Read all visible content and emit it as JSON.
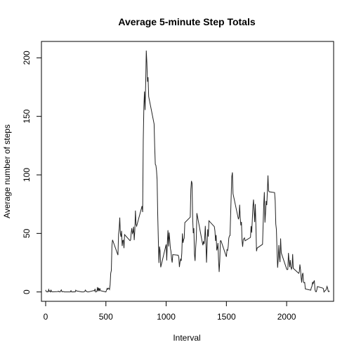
{
  "chart_data": {
    "type": "line",
    "title": "Average 5-minute Step Totals",
    "xlabel": "Interval",
    "ylabel": "Average number of steps",
    "xlim": [
      -35,
      2390
    ],
    "ylim": [
      -8,
      214
    ],
    "xticks": [
      0,
      500,
      1000,
      1500,
      2000
    ],
    "yticks": [
      0,
      50,
      100,
      150,
      200
    ],
    "grid": false,
    "series": [
      {
        "color": "#222222",
        "points": [
          [
            0,
            1.7
          ],
          [
            5,
            0.3
          ],
          [
            10,
            0.1
          ],
          [
            15,
            0.2
          ],
          [
            20,
            0.1
          ],
          [
            25,
            2.1
          ],
          [
            30,
            0.5
          ],
          [
            35,
            0.9
          ],
          [
            40,
            0
          ],
          [
            45,
            1.5
          ],
          [
            50,
            0.3
          ],
          [
            55,
            0.1
          ],
          [
            100,
            0.3
          ],
          [
            105,
            0.7
          ],
          [
            110,
            0.2
          ],
          [
            115,
            0.3
          ],
          [
            120,
            0
          ],
          [
            125,
            1.1
          ],
          [
            130,
            1.8
          ],
          [
            135,
            0.2
          ],
          [
            140,
            0.2
          ],
          [
            145,
            0.4
          ],
          [
            150,
            0.3
          ],
          [
            155,
            0
          ],
          [
            200,
            0
          ],
          [
            205,
            0
          ],
          [
            210,
            1.1
          ],
          [
            215,
            0
          ],
          [
            220,
            0
          ],
          [
            225,
            0.1
          ],
          [
            230,
            0
          ],
          [
            235,
            0.2
          ],
          [
            240,
            0
          ],
          [
            245,
            0
          ],
          [
            250,
            1.5
          ],
          [
            255,
            0.9
          ],
          [
            300,
            0
          ],
          [
            305,
            0
          ],
          [
            310,
            0
          ],
          [
            315,
            0
          ],
          [
            320,
            0.2
          ],
          [
            325,
            0.6
          ],
          [
            330,
            1.6
          ],
          [
            335,
            0.6
          ],
          [
            340,
            0.5
          ],
          [
            345,
            0.1
          ],
          [
            350,
            0
          ],
          [
            355,
            0
          ],
          [
            400,
            1.2
          ],
          [
            405,
            0.9
          ],
          [
            410,
            2.6
          ],
          [
            415,
            0
          ],
          [
            420,
            0.3
          ],
          [
            425,
            0.4
          ],
          [
            430,
            4.1
          ],
          [
            435,
            0.7
          ],
          [
            440,
            3.5
          ],
          [
            445,
            0.8
          ],
          [
            450,
            3.1
          ],
          [
            455,
            1.1
          ],
          [
            500,
            0
          ],
          [
            505,
            1.6
          ],
          [
            510,
            3
          ],
          [
            515,
            2.2
          ],
          [
            520,
            3.3
          ],
          [
            525,
            3
          ],
          [
            530,
            2.1
          ],
          [
            535,
            6.1
          ],
          [
            540,
            16
          ],
          [
            545,
            18.3
          ],
          [
            550,
            39.4
          ],
          [
            555,
            44.5
          ],
          [
            600,
            31.5
          ],
          [
            605,
            49.3
          ],
          [
            610,
            53.8
          ],
          [
            615,
            63.5
          ],
          [
            620,
            50
          ],
          [
            625,
            47.1
          ],
          [
            630,
            52.2
          ],
          [
            635,
            39.3
          ],
          [
            640,
            44
          ],
          [
            645,
            44.2
          ],
          [
            650,
            37.4
          ],
          [
            655,
            49
          ],
          [
            700,
            43.8
          ],
          [
            705,
            44.4
          ],
          [
            710,
            50.5
          ],
          [
            715,
            54.5
          ],
          [
            720,
            49.9
          ],
          [
            725,
            51
          ],
          [
            730,
            55.7
          ],
          [
            735,
            44.3
          ],
          [
            740,
            52.3
          ],
          [
            745,
            69.5
          ],
          [
            750,
            57.8
          ],
          [
            755,
            56.2
          ],
          [
            800,
            73.4
          ],
          [
            805,
            68.2
          ],
          [
            810,
            129.4
          ],
          [
            815,
            157.5
          ],
          [
            820,
            171.2
          ],
          [
            825,
            155.4
          ],
          [
            830,
            177.3
          ],
          [
            835,
            206.2
          ],
          [
            840,
            195.9
          ],
          [
            845,
            179.6
          ],
          [
            850,
            183.4
          ],
          [
            855,
            167
          ],
          [
            900,
            143.5
          ],
          [
            905,
            124
          ],
          [
            910,
            109.1
          ],
          [
            915,
            108.1
          ],
          [
            920,
            103.7
          ],
          [
            925,
            95.97
          ],
          [
            930,
            66.2
          ],
          [
            935,
            45.2
          ],
          [
            940,
            24.8
          ],
          [
            945,
            38.8
          ],
          [
            950,
            34.98
          ],
          [
            955,
            21.1
          ],
          [
            1000,
            40.6
          ],
          [
            1005,
            26.9
          ],
          [
            1010,
            42.4
          ],
          [
            1015,
            52.7
          ],
          [
            1020,
            38.9
          ],
          [
            1025,
            50.8
          ],
          [
            1030,
            44.3
          ],
          [
            1035,
            37.4
          ],
          [
            1040,
            34.7
          ],
          [
            1045,
            28.3
          ],
          [
            1050,
            25.1
          ],
          [
            1055,
            31.9
          ],
          [
            1100,
            31.4
          ],
          [
            1105,
            29.7
          ],
          [
            1110,
            21.3
          ],
          [
            1115,
            25.5
          ],
          [
            1120,
            28.4
          ],
          [
            1125,
            26.5
          ],
          [
            1130,
            33.4
          ],
          [
            1135,
            49.98
          ],
          [
            1140,
            42
          ],
          [
            1145,
            44.6
          ],
          [
            1150,
            46
          ],
          [
            1155,
            59.2
          ],
          [
            1200,
            63.9
          ],
          [
            1205,
            87.7
          ],
          [
            1210,
            94.8
          ],
          [
            1215,
            92.8
          ],
          [
            1220,
            63.4
          ],
          [
            1225,
            50.2
          ],
          [
            1230,
            54.5
          ],
          [
            1235,
            32.4
          ],
          [
            1240,
            26.5
          ],
          [
            1245,
            37.7
          ],
          [
            1250,
            45.1
          ],
          [
            1255,
            67.3
          ],
          [
            1300,
            42.3
          ],
          [
            1305,
            39.9
          ],
          [
            1310,
            43.3
          ],
          [
            1315,
            40.98
          ],
          [
            1320,
            46.2
          ],
          [
            1325,
            56.4
          ],
          [
            1330,
            42.8
          ],
          [
            1335,
            25.1
          ],
          [
            1340,
            39.97
          ],
          [
            1345,
            53.5
          ],
          [
            1350,
            47.3
          ],
          [
            1355,
            60.8
          ],
          [
            1400,
            55.8
          ],
          [
            1405,
            51.96
          ],
          [
            1410,
            43.6
          ],
          [
            1415,
            48.7
          ],
          [
            1420,
            35.5
          ],
          [
            1425,
            37.5
          ],
          [
            1430,
            41.8
          ],
          [
            1435,
            27.5
          ],
          [
            1440,
            17.1
          ],
          [
            1445,
            26.1
          ],
          [
            1450,
            43.6
          ],
          [
            1455,
            43.8
          ],
          [
            1500,
            30.02
          ],
          [
            1505,
            36.1
          ],
          [
            1510,
            35.5
          ],
          [
            1515,
            38.8
          ],
          [
            1520,
            45.96
          ],
          [
            1525,
            47.8
          ],
          [
            1530,
            48.1
          ],
          [
            1535,
            65.3
          ],
          [
            1540,
            82.9
          ],
          [
            1545,
            98.7
          ],
          [
            1550,
            102.1
          ],
          [
            1555,
            83.96
          ],
          [
            1600,
            62.1
          ],
          [
            1605,
            64.1
          ],
          [
            1610,
            74.5
          ],
          [
            1615,
            63.2
          ],
          [
            1620,
            56.9
          ],
          [
            1625,
            59.8
          ],
          [
            1630,
            43.9
          ],
          [
            1635,
            38.6
          ],
          [
            1640,
            44.7
          ],
          [
            1645,
            45.5
          ],
          [
            1650,
            46.2
          ],
          [
            1655,
            43.7
          ],
          [
            1700,
            46.6
          ],
          [
            1705,
            56.3
          ],
          [
            1710,
            50.7
          ],
          [
            1715,
            61.2
          ],
          [
            1720,
            72.7
          ],
          [
            1725,
            78.9
          ],
          [
            1730,
            68.9
          ],
          [
            1735,
            59.7
          ],
          [
            1740,
            75.1
          ],
          [
            1745,
            56.5
          ],
          [
            1750,
            34.8
          ],
          [
            1755,
            37.5
          ],
          [
            1800,
            40.7
          ],
          [
            1805,
            58
          ],
          [
            1810,
            74.7
          ],
          [
            1815,
            85.3
          ],
          [
            1820,
            59.3
          ],
          [
            1825,
            67.8
          ],
          [
            1830,
            77.7
          ],
          [
            1835,
            74.2
          ],
          [
            1840,
            85.3
          ],
          [
            1845,
            99.5
          ],
          [
            1850,
            86.6
          ],
          [
            1855,
            85.6
          ],
          [
            1900,
            84.9
          ],
          [
            1905,
            77.8
          ],
          [
            1910,
            58
          ],
          [
            1915,
            53.4
          ],
          [
            1920,
            36.3
          ],
          [
            1925,
            20.7
          ],
          [
            1930,
            27.4
          ],
          [
            1935,
            40
          ],
          [
            1940,
            30.2
          ],
          [
            1945,
            25.5
          ],
          [
            1950,
            45.7
          ],
          [
            1955,
            33.5
          ],
          [
            2000,
            19.6
          ],
          [
            2005,
            19
          ],
          [
            2010,
            19.3
          ],
          [
            2015,
            33.3
          ],
          [
            2020,
            26.8
          ],
          [
            2025,
            21.2
          ],
          [
            2030,
            27.3
          ],
          [
            2035,
            21.3
          ],
          [
            2040,
            19.5
          ],
          [
            2045,
            21.3
          ],
          [
            2050,
            32.3
          ],
          [
            2055,
            20.2
          ],
          [
            2100,
            15.9
          ],
          [
            2105,
            17.2
          ],
          [
            2110,
            23.5
          ],
          [
            2115,
            19.2
          ],
          [
            2120,
            12.5
          ],
          [
            2125,
            8
          ],
          [
            2130,
            14.7
          ],
          [
            2135,
            16.3
          ],
          [
            2140,
            8.7
          ],
          [
            2145,
            7.8
          ],
          [
            2150,
            8.1
          ],
          [
            2155,
            2.6
          ],
          [
            2200,
            1.5
          ],
          [
            2205,
            3.7
          ],
          [
            2210,
            4.8
          ],
          [
            2215,
            8.5
          ],
          [
            2220,
            7.1
          ],
          [
            2225,
            8.7
          ],
          [
            2230,
            9.8
          ],
          [
            2235,
            2.2
          ],
          [
            2240,
            0.3
          ],
          [
            2245,
            0.1
          ],
          [
            2250,
            1.6
          ],
          [
            2255,
            4.6
          ],
          [
            2300,
            3.3
          ],
          [
            2305,
            2.8
          ],
          [
            2310,
            0
          ],
          [
            2315,
            0.8
          ],
          [
            2320,
            1
          ],
          [
            2325,
            1.6
          ],
          [
            2330,
            2.6
          ],
          [
            2335,
            4.7
          ],
          [
            2340,
            3.3
          ],
          [
            2345,
            0.6
          ],
          [
            2350,
            0.2
          ],
          [
            2355,
            1.1
          ]
        ]
      }
    ]
  }
}
